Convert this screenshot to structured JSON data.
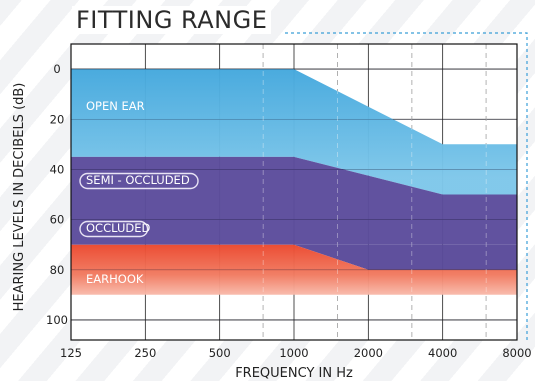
{
  "chart_data": {
    "type": "area",
    "title": "FITTING RANGE",
    "xlabel": "FREQUENCY IN Hz",
    "ylabel": "HEARING LEVELS IN DECIBELS (dB)",
    "x_scale": "log",
    "y_axis_inverted": true,
    "x_ticks": [
      "125",
      "250",
      "500",
      "1000",
      "2000",
      "4000",
      "8000"
    ],
    "y_ticks": [
      "0",
      "20",
      "40",
      "60",
      "80",
      "100"
    ],
    "ylim": [
      -10,
      108
    ],
    "xlim": [
      125,
      8000
    ],
    "grid": true,
    "colors": {
      "open_ear": "#3ea6dc",
      "semi_occluded": "#5c4c9c",
      "occluded": "#5a4a9a",
      "earhook": "#ec5236"
    },
    "series": [
      {
        "name": "OPEN EAR",
        "x": [
          125,
          1000,
          4000,
          8000
        ],
        "top": [
          0,
          0,
          30,
          30
        ],
        "bottom": [
          35,
          35,
          50,
          50
        ]
      },
      {
        "name": "SEMI - OCCLUDED",
        "x": [
          125,
          1000,
          4000,
          8000
        ],
        "top": [
          35,
          35,
          50,
          50
        ],
        "bottom": [
          70,
          70,
          70,
          70
        ]
      },
      {
        "name": "OCCLUDED",
        "x": [
          125,
          1000,
          2000,
          8000
        ],
        "top": [
          70,
          70,
          70,
          70
        ],
        "bottom": [
          70,
          70,
          80,
          80
        ]
      },
      {
        "name": "EARHOOK",
        "x": [
          125,
          1000,
          2000,
          8000
        ],
        "top": [
          70,
          70,
          80,
          80
        ],
        "bottom": [
          90,
          90,
          90,
          90
        ]
      }
    ]
  }
}
